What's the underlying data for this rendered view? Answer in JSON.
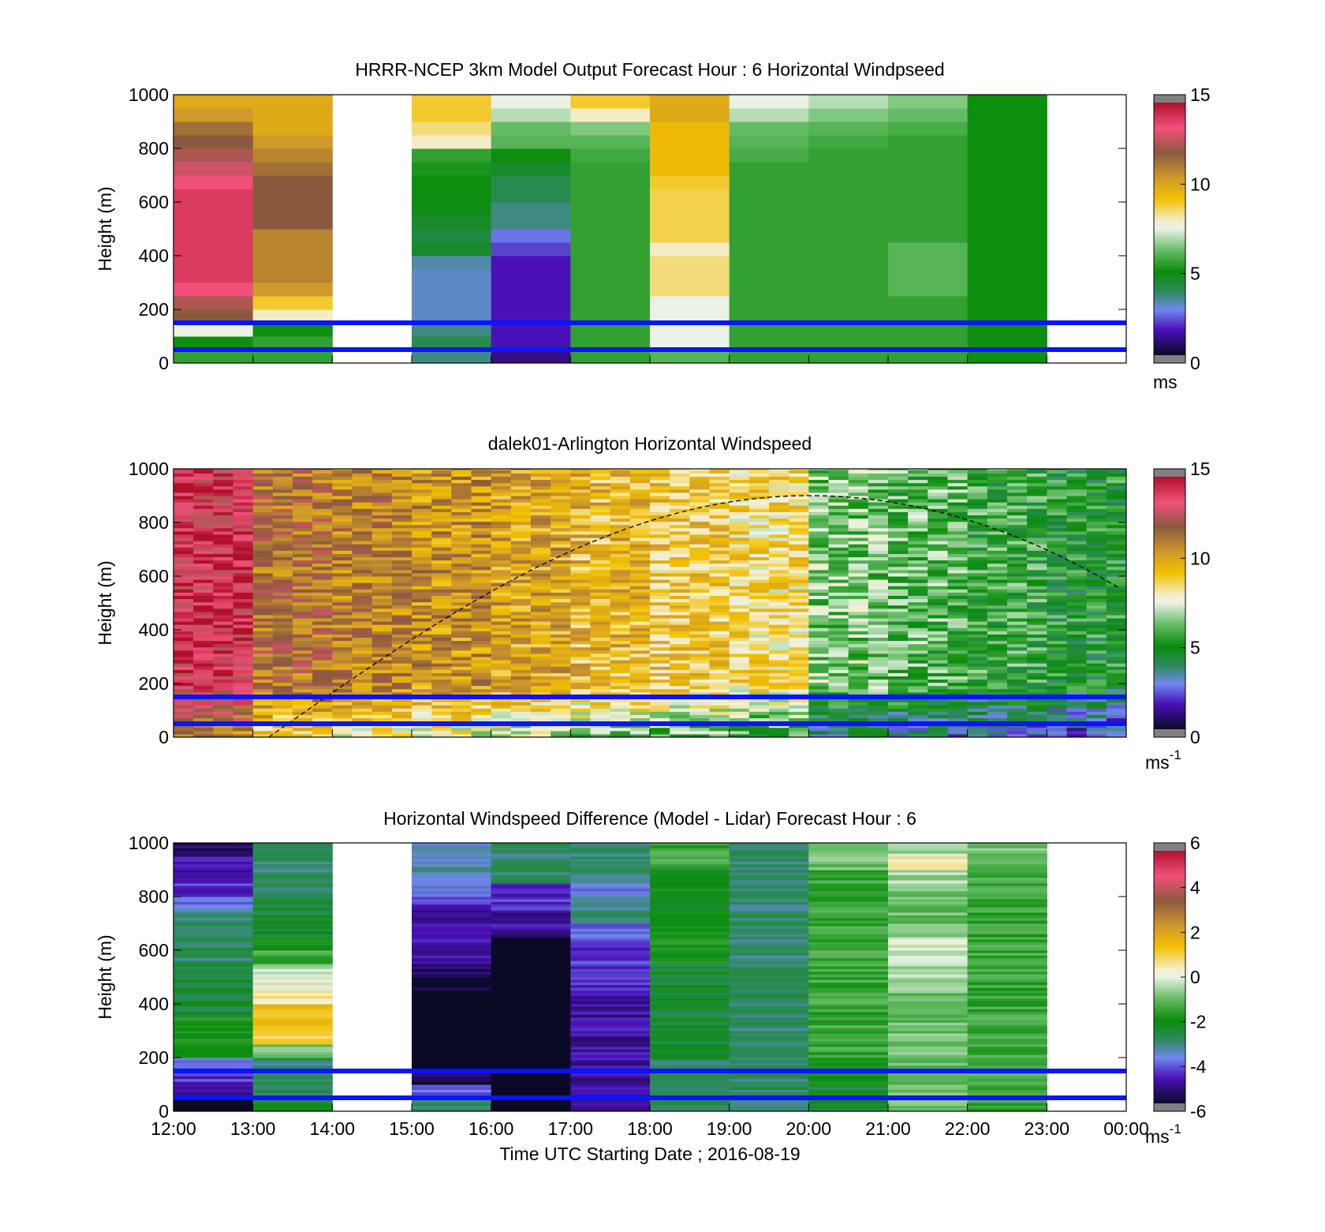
{
  "figure": {
    "xlabel": "Time UTC  Starting Date ; 2016-08-19",
    "x_ticks": [
      "12:00",
      "13:00",
      "14:00",
      "15:00",
      "16:00",
      "17:00",
      "18:00",
      "19:00",
      "20:00",
      "21:00",
      "22:00",
      "23:00",
      "00:00"
    ],
    "reference_lines_m": [
      150,
      50
    ],
    "reference_line_color": "#0a14ff"
  },
  "colorbars": {
    "speed": {
      "ticks": [
        "0",
        "5",
        "10",
        "15"
      ],
      "stops": [
        [
          0.0,
          "#0a0a26"
        ],
        [
          0.1,
          "#4a10b8"
        ],
        [
          0.18,
          "#7088f0"
        ],
        [
          0.25,
          "#2e8a60"
        ],
        [
          0.33,
          "#0a8c0a"
        ],
        [
          0.42,
          "#6cbf6c"
        ],
        [
          0.5,
          "#eaf2e6"
        ],
        [
          0.53,
          "#f4eecc"
        ],
        [
          0.62,
          "#f2c000"
        ],
        [
          0.7,
          "#d09a2a"
        ],
        [
          0.8,
          "#8b5a3e"
        ],
        [
          0.9,
          "#f0507a"
        ],
        [
          1.0,
          "#b0102a"
        ]
      ],
      "range": [
        0,
        15
      ]
    },
    "diff": {
      "ticks": [
        "-6",
        "-4",
        "-2",
        "0",
        "2",
        "4",
        "6"
      ],
      "range": [
        -6,
        6
      ]
    }
  },
  "chart_data": [
    {
      "type": "heatmap",
      "title": "HRRR-NCEP 3km Model Output   Forecast Hour : 6 Horizontal Windpseed",
      "ylabel": "Height (m)",
      "y_ticks": [
        "0",
        "200",
        "400",
        "600",
        "800",
        "1000"
      ],
      "ylim": [
        0,
        1000
      ],
      "unit_label": "ms",
      "colorbar": "speed",
      "x_hours_utc": [
        "12:00",
        "13:00",
        "14:00",
        "15:00",
        "16:00",
        "17:00",
        "18:00",
        "19:00",
        "20:00",
        "21:00",
        "22:00",
        "23:00"
      ],
      "heights_m": [
        25,
        75,
        125,
        175,
        225,
        275,
        325,
        375,
        425,
        475,
        525,
        575,
        625,
        675,
        725,
        775,
        825,
        875,
        925,
        975
      ],
      "values_ms": [
        [
          5.5,
          5.5,
          null,
          3.5,
          1.0,
          5.5,
          6.0,
          5.5,
          5.5,
          5.5,
          5.0,
          null
        ],
        [
          5.0,
          5.5,
          null,
          4.0,
          1.5,
          5.5,
          7.5,
          5.5,
          5.5,
          5.5,
          5.0,
          null
        ],
        [
          7.5,
          5.0,
          null,
          3.5,
          1.5,
          5.5,
          7.5,
          5.5,
          5.5,
          5.5,
          5.0,
          null
        ],
        [
          12.0,
          8.0,
          null,
          3.0,
          1.5,
          5.5,
          7.5,
          5.5,
          5.5,
          5.5,
          5.0,
          null
        ],
        [
          12.5,
          9.0,
          null,
          3.0,
          1.5,
          5.5,
          7.5,
          5.5,
          5.5,
          5.5,
          5.0,
          null
        ],
        [
          13.5,
          10.5,
          null,
          3.0,
          1.5,
          5.5,
          8.5,
          5.5,
          5.5,
          6.0,
          5.0,
          null
        ],
        [
          14.0,
          11.0,
          null,
          3.0,
          1.5,
          5.5,
          8.5,
          5.5,
          5.5,
          6.0,
          5.0,
          null
        ],
        [
          14.0,
          11.0,
          null,
          3.2,
          1.5,
          5.5,
          8.5,
          5.5,
          5.5,
          6.0,
          5.0,
          null
        ],
        [
          14.0,
          11.0,
          null,
          4.5,
          2.0,
          5.5,
          8.0,
          5.5,
          5.5,
          6.0,
          5.0,
          null
        ],
        [
          14.0,
          11.0,
          null,
          4.2,
          2.5,
          5.5,
          8.8,
          5.5,
          5.5,
          5.5,
          5.0,
          null
        ],
        [
          14.0,
          12.0,
          null,
          4.5,
          3.5,
          5.5,
          8.8,
          5.5,
          5.5,
          5.5,
          5.0,
          null
        ],
        [
          14.0,
          12.0,
          null,
          4.8,
          3.5,
          5.5,
          8.8,
          5.5,
          5.5,
          5.5,
          5.0,
          null
        ],
        [
          14.0,
          12.0,
          null,
          5.0,
          4.0,
          5.5,
          8.8,
          5.5,
          5.5,
          5.5,
          5.0,
          null
        ],
        [
          13.5,
          12.0,
          null,
          5.0,
          4.0,
          5.5,
          9.0,
          5.5,
          5.5,
          5.5,
          5.0,
          null
        ],
        [
          13.0,
          11.5,
          null,
          5.2,
          4.5,
          5.5,
          9.5,
          5.5,
          5.5,
          5.5,
          5.0,
          null
        ],
        [
          12.5,
          11.0,
          null,
          5.5,
          5.0,
          5.7,
          9.5,
          5.8,
          5.5,
          5.5,
          5.0,
          null
        ],
        [
          12.0,
          10.5,
          null,
          8.0,
          6.0,
          6.0,
          9.5,
          6.0,
          5.7,
          5.5,
          5.0,
          null
        ],
        [
          11.5,
          10.0,
          null,
          8.5,
          6.2,
          6.5,
          9.5,
          6.2,
          6.0,
          5.8,
          5.0,
          null
        ],
        [
          10.5,
          10.0,
          null,
          9.0,
          7.0,
          8.0,
          10.0,
          7.0,
          6.5,
          6.2,
          5.0,
          null
        ],
        [
          10.0,
          10.0,
          null,
          9.0,
          7.5,
          9.0,
          10.0,
          7.5,
          7.0,
          6.5,
          5.0,
          null
        ]
      ]
    },
    {
      "type": "heatmap",
      "title": "dalek01-Arlington  Horizontal Windspeed",
      "ylabel": "Height (m)",
      "y_ticks": [
        "0",
        "200",
        "400",
        "600",
        "800",
        "1000"
      ],
      "ylim": [
        0,
        1000
      ],
      "unit_label": "ms",
      "unit_superscript": "-1",
      "colorbar": "speed",
      "x_range_hours": [
        12,
        23.9
      ],
      "representative_speed_ms": {
        "12:00": 14.0,
        "13:00": 11.5,
        "14:00": 11.0,
        "15:00": 10.5,
        "16:00": 10.0,
        "17:00": 9.5,
        "18:00": 9.0,
        "19:00": 8.5,
        "20:00": 6.5,
        "21:00": 6.0,
        "22:00": 5.5,
        "23:00": 5.0
      },
      "dashed_curve": "sun elevation style arc, peak near 20:00 at about 900 m"
    },
    {
      "type": "heatmap",
      "title": "Horizontal Windspeed Difference (Model - Lidar) Forecast Hour : 6",
      "ylabel": "Height (m)",
      "y_ticks": [
        "0",
        "200",
        "400",
        "600",
        "800",
        "1000"
      ],
      "ylim": [
        0,
        1000
      ],
      "unit_label": "ms",
      "unit_superscript": "-1",
      "colorbar": "diff",
      "x_hours_utc": [
        "12:00",
        "13:00",
        "14:00",
        "15:00",
        "16:00",
        "17:00",
        "18:00",
        "19:00",
        "20:00",
        "21:00",
        "22:00",
        "23:00"
      ],
      "heights_m": [
        25,
        75,
        125,
        175,
        225,
        275,
        325,
        375,
        425,
        475,
        525,
        575,
        625,
        675,
        725,
        775,
        825,
        875,
        925,
        975
      ],
      "values_ms": [
        [
          -6.5,
          -2.5,
          null,
          -3.0,
          -6.5,
          -5.0,
          -3.0,
          -3.0,
          -2.5,
          -1.0,
          -1.5,
          null
        ],
        [
          -5.0,
          -3.0,
          null,
          -4.0,
          -6.5,
          -5.0,
          -3.0,
          -3.0,
          -2.5,
          -1.0,
          -1.5,
          null
        ],
        [
          -4.5,
          -3.0,
          null,
          -5.5,
          -6.5,
          -5.0,
          -3.0,
          -3.0,
          -2.0,
          -1.0,
          -1.5,
          null
        ],
        [
          -4.0,
          -3.0,
          null,
          -6.5,
          -6.5,
          -5.0,
          -3.0,
          -3.0,
          -2.0,
          -1.0,
          -1.5,
          null
        ],
        [
          -2.0,
          -1.0,
          null,
          -6.5,
          -6.5,
          -5.0,
          -2.5,
          -3.0,
          -1.5,
          -1.0,
          -1.5,
          null
        ],
        [
          -2.0,
          1.0,
          null,
          -6.5,
          -6.5,
          -5.0,
          -2.5,
          -3.0,
          -1.5,
          -1.0,
          -1.5,
          null
        ],
        [
          -2.0,
          1.5,
          null,
          -6.5,
          -6.5,
          -5.0,
          -2.5,
          -3.0,
          -1.5,
          -1.0,
          -1.5,
          null
        ],
        [
          -2.5,
          1.5,
          null,
          -6.5,
          -6.5,
          -5.0,
          -2.5,
          -3.0,
          -1.5,
          -1.0,
          -1.5,
          null
        ],
        [
          -2.5,
          0.5,
          null,
          -6.5,
          -6.5,
          -5.0,
          -2.5,
          -3.0,
          -1.5,
          -1.0,
          -1.5,
          null
        ],
        [
          -2.5,
          0.0,
          null,
          -5.8,
          -6.5,
          -4.5,
          -2.5,
          -3.0,
          -1.5,
          -0.5,
          -1.5,
          null
        ],
        [
          -2.5,
          -0.5,
          null,
          -5.5,
          -6.5,
          -4.5,
          -2.5,
          -3.0,
          -1.5,
          -0.5,
          -1.5,
          null
        ],
        [
          -3.0,
          -1.5,
          null,
          -5.0,
          -6.5,
          -4.5,
          -2.0,
          -3.0,
          -1.5,
          -0.5,
          -1.5,
          null
        ],
        [
          -3.0,
          -2.0,
          null,
          -5.0,
          -6.5,
          -4.5,
          -2.0,
          -3.0,
          -1.5,
          0.0,
          -1.5,
          null
        ],
        [
          -3.0,
          -2.5,
          null,
          -5.0,
          -5.0,
          -4.0,
          -2.0,
          -3.0,
          -1.5,
          -1.0,
          -1.5,
          null
        ],
        [
          -3.0,
          -2.5,
          null,
          -5.0,
          -5.0,
          -3.0,
          -2.0,
          -3.0,
          -1.5,
          -1.0,
          -1.5,
          null
        ],
        [
          -4.0,
          -2.5,
          null,
          -4.5,
          -4.5,
          -3.5,
          -2.0,
          -3.0,
          -1.5,
          -1.0,
          -1.5,
          null
        ],
        [
          -4.5,
          -3.0,
          null,
          -4.0,
          -4.5,
          -4.0,
          -2.0,
          -3.0,
          -1.5,
          -1.0,
          -1.5,
          null
        ],
        [
          -5.0,
          -3.0,
          null,
          -3.5,
          -3.0,
          -3.0,
          -2.0,
          -3.0,
          -1.5,
          -0.5,
          -1.5,
          null
        ],
        [
          -5.0,
          -3.0,
          null,
          -3.5,
          -3.0,
          -3.0,
          -1.5,
          -3.0,
          -1.0,
          0.5,
          -1.0,
          null
        ],
        [
          -5.5,
          -3.0,
          null,
          -3.5,
          -3.0,
          -3.0,
          -1.5,
          -3.0,
          -1.0,
          -0.5,
          -1.0,
          null
        ]
      ]
    }
  ]
}
